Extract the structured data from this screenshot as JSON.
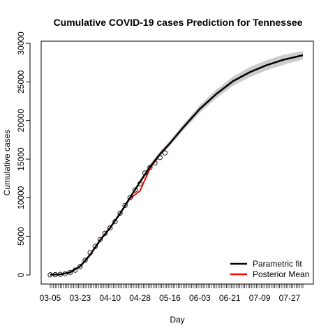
{
  "chart_data": {
    "type": "line",
    "title": "Cumulative COVID-19 cases Prediction for Tennessee",
    "xlabel": "Day",
    "ylabel": "Cumulative cases",
    "x_tick_labels": [
      "03-05",
      "03-23",
      "04-10",
      "04-28",
      "05-16",
      "06-03",
      "06-21",
      "07-09",
      "07-27"
    ],
    "x_tick_days": [
      0,
      18,
      36,
      54,
      72,
      90,
      108,
      126,
      144
    ],
    "xlim": [
      0,
      152
    ],
    "ylim": [
      0,
      30000
    ],
    "y_ticks": [
      0,
      5000,
      10000,
      15000,
      20000,
      25000,
      30000
    ],
    "legend_position": "bottom-right",
    "observed_days": [
      0,
      3,
      6,
      9,
      12,
      15,
      18,
      21,
      24,
      27,
      30,
      33,
      36,
      39,
      42,
      45,
      48,
      51,
      54,
      57,
      60,
      63,
      66,
      69
    ],
    "observed_cases": [
      20,
      40,
      80,
      160,
      330,
      620,
      1100,
      1900,
      2900,
      3700,
      4600,
      5400,
      6100,
      6900,
      8000,
      9000,
      10000,
      11000,
      11800,
      13200,
      13900,
      14500,
      15200,
      15800
    ],
    "band_days": [
      0,
      6,
      12,
      18,
      24,
      30,
      36,
      42,
      48,
      54,
      60,
      66,
      72,
      80,
      90,
      100,
      110,
      120,
      130,
      140,
      152
    ],
    "band_lower": [
      20,
      60,
      300,
      1050,
      2500,
      4400,
      6000,
      7800,
      9800,
      11800,
      13700,
      15300,
      16700,
      18700,
      21000,
      22900,
      24500,
      25600,
      26500,
      27200,
      27900
    ],
    "band_upper": [
      60,
      110,
      380,
      1200,
      2700,
      4600,
      6200,
      8100,
      10200,
      12300,
      14300,
      16000,
      17400,
      19500,
      22000,
      24000,
      25700,
      26900,
      27800,
      28500,
      29000
    ],
    "series": [
      {
        "name": "Parametric fit",
        "color": "#000000",
        "x": [
          0,
          6,
          12,
          18,
          24,
          30,
          36,
          42,
          48,
          54,
          60,
          66,
          72,
          80,
          90,
          100,
          110,
          120,
          130,
          140,
          152
        ],
        "values": [
          40,
          80,
          340,
          1120,
          2600,
          4500,
          6100,
          7950,
          10000,
          12050,
          14000,
          15650,
          17050,
          19100,
          21500,
          23450,
          25100,
          26250,
          27150,
          27850,
          28450
        ]
      },
      {
        "name": "Posterior Mean",
        "color": "#ff0000",
        "x": [
          0,
          6,
          12,
          18,
          24,
          30,
          36,
          42,
          48,
          54,
          60,
          66,
          72
        ],
        "values": [
          30,
          90,
          360,
          1150,
          2650,
          4550,
          6150,
          8000,
          9900,
          10900,
          13800,
          15600,
          17000
        ]
      }
    ]
  }
}
